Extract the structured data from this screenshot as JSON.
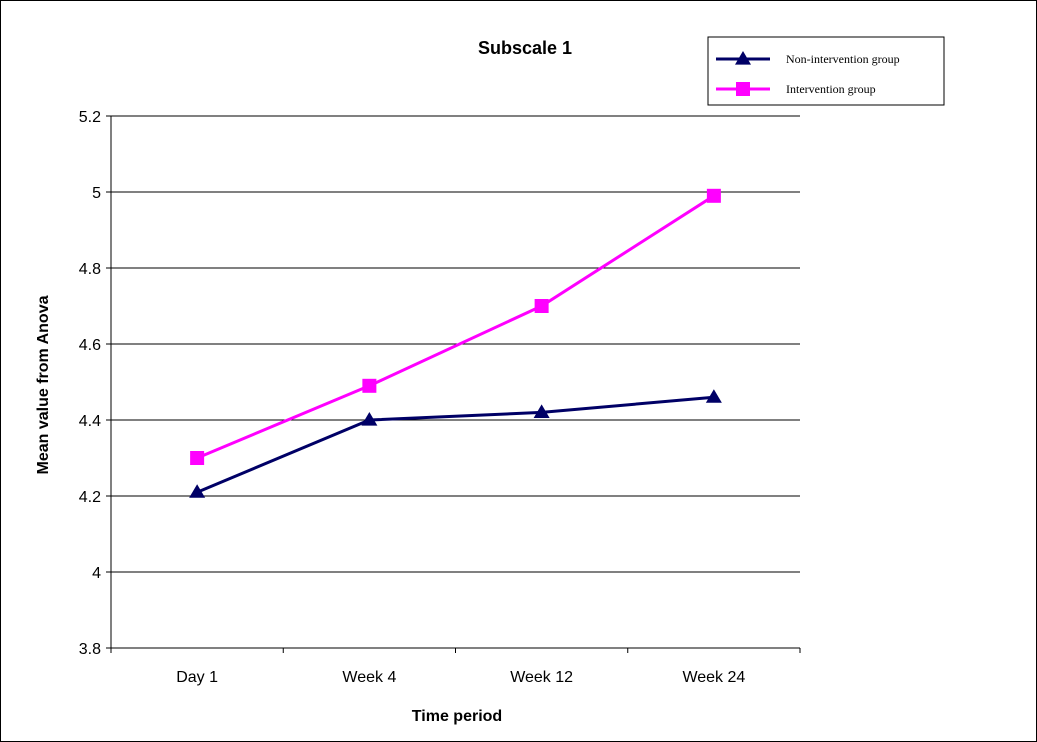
{
  "chart_data": {
    "type": "line",
    "title": "Subscale 1",
    "xlabel": "Time period",
    "ylabel": "Mean value from Anova",
    "categories": [
      "Day 1",
      "Week 4",
      "Week 12",
      "Week 24"
    ],
    "ylim": [
      3.8,
      5.2
    ],
    "yticks": [
      "3.8",
      "4",
      "4.2",
      "4.4",
      "4.6",
      "4.8",
      "5",
      "5.2"
    ],
    "grid": true,
    "legend_position": "top-right",
    "series": [
      {
        "name": "Non-intervention group",
        "values": [
          4.21,
          4.4,
          4.42,
          4.46
        ],
        "color": "#000066",
        "marker": "triangle"
      },
      {
        "name": "Intervention group",
        "values": [
          4.3,
          4.49,
          4.7,
          4.99
        ],
        "color": "#ff00ff",
        "marker": "square"
      }
    ]
  }
}
